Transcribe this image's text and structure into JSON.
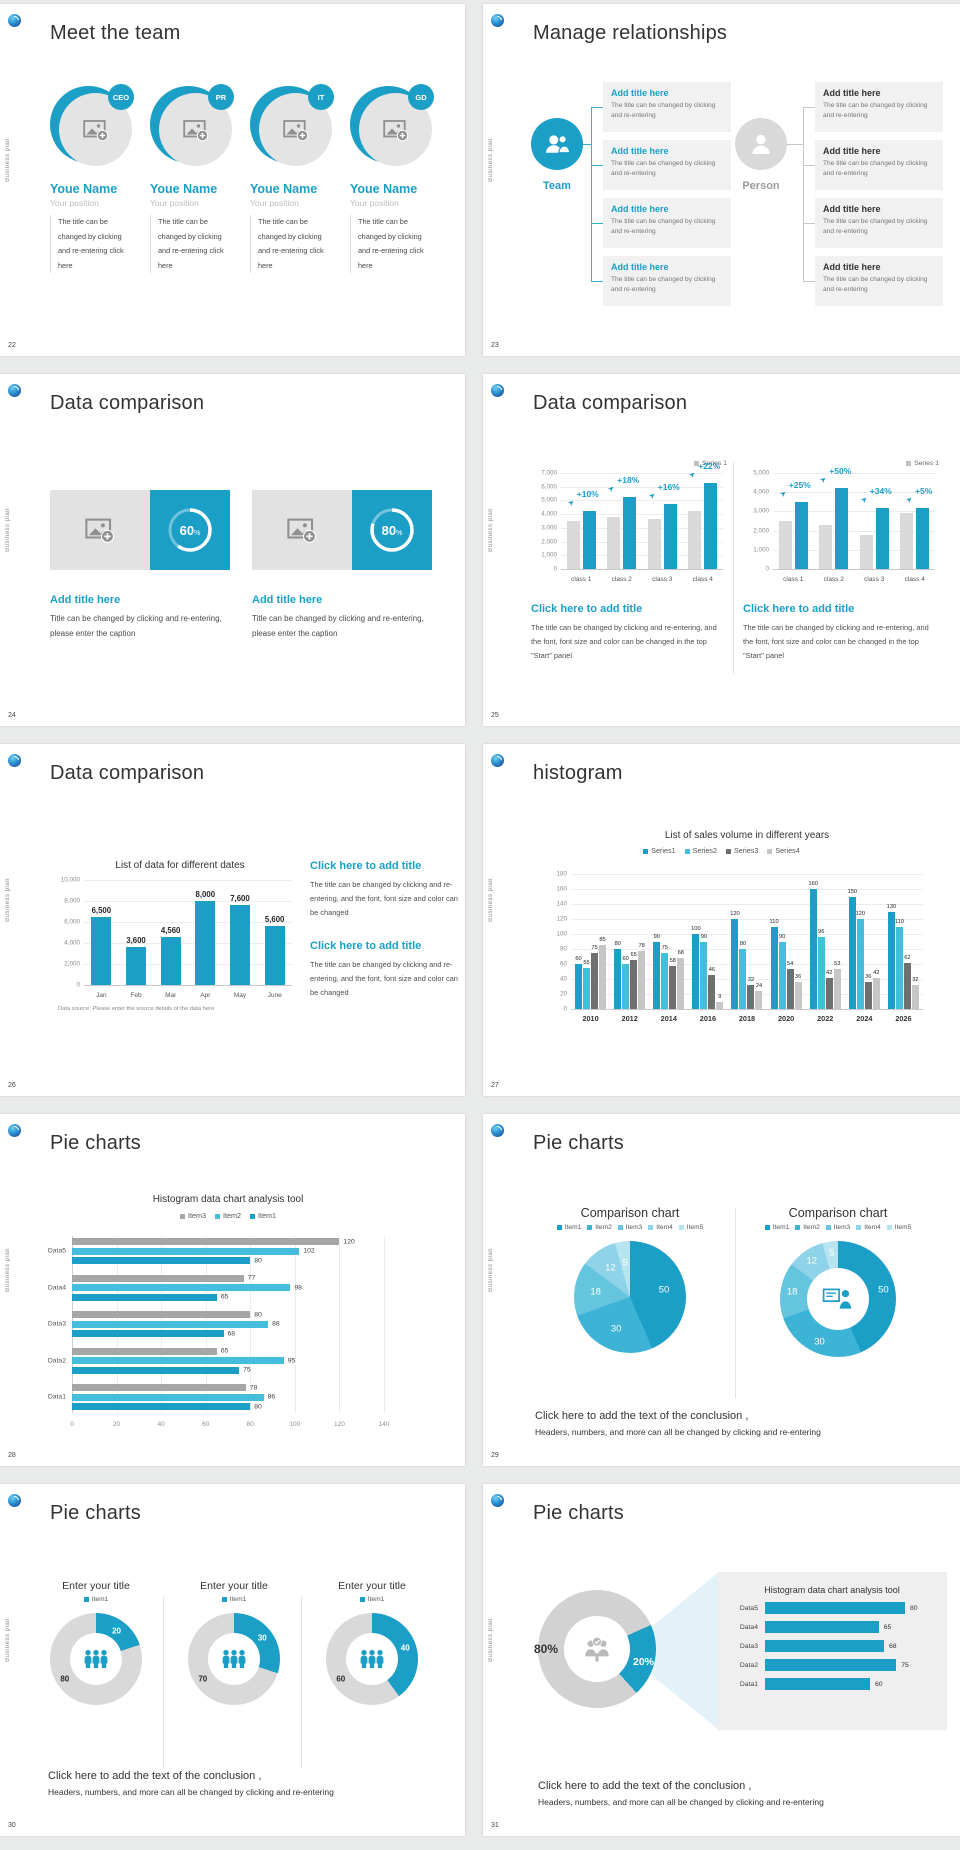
{
  "sidebar_text": "Business plan",
  "accent": "#1b9fc7",
  "s22": {
    "page": "22",
    "title": "Meet the team",
    "badges": [
      "CEO",
      "PR",
      "IT",
      "GD"
    ],
    "name": "Youe Name",
    "position": "Your position",
    "desc": "The title can be changed by clicking and re-entering click here"
  },
  "s23": {
    "page": "23",
    "title": "Manage relationships",
    "team": "Team",
    "person": "Person",
    "box_title": "Add title here",
    "box_body": "The title can be changed by clicking and re-entering"
  },
  "s24": {
    "page": "24",
    "title": "Data comparison",
    "item_title": "Add title here",
    "caption": "Title can be changed by clicking and re-entering, please enter the caption",
    "percents": [
      60,
      80
    ],
    "percent_symbol": "%"
  },
  "s25": {
    "page": "25",
    "title": "Data comparison",
    "legend": "Series 1",
    "legend_color": "#bfbfbf",
    "block_title": "Click here to add title",
    "block_body": "The title can be changed by clicking and re-entering, and the font, font size and color can be changed in the top \"Start\" panel",
    "charts": [
      {
        "type": "bar",
        "ymax": 7000,
        "yticks": [
          "7,000",
          "6,000",
          "5,000",
          "4,000",
          "3,000",
          "2,000",
          "1,000",
          "0"
        ],
        "categories": [
          "class 1",
          "class 2",
          "class 3",
          "class 4"
        ],
        "series": [
          {
            "name": "baseline",
            "color": "#d9d9d9",
            "values": [
              3500,
              3800,
              3650,
              4250
            ]
          },
          {
            "name": "Series 1",
            "color": "#1b9fc7",
            "values": [
              4200,
              5250,
              4750,
              6300
            ]
          }
        ],
        "annotations": [
          "+10%",
          "+18%",
          "+16%",
          "+22%"
        ]
      },
      {
        "type": "bar",
        "ymax": 5000,
        "yticks": [
          "5,000",
          "4,000",
          "3,000",
          "2,000",
          "1,000",
          "0"
        ],
        "categories": [
          "class 1",
          "class 2",
          "class 3",
          "class 4"
        ],
        "series": [
          {
            "name": "baseline",
            "color": "#d9d9d9",
            "values": [
              2500,
              2300,
              1750,
              2900
            ]
          },
          {
            "name": "Series 1",
            "color": "#1b9fc7",
            "values": [
              3500,
              4200,
              3200,
              3200
            ]
          }
        ],
        "annotations": [
          "+25%",
          "+50%",
          "+34%",
          "+5%"
        ]
      }
    ]
  },
  "s26": {
    "page": "26",
    "title": "Data comparison",
    "chart": {
      "type": "bar",
      "title": "List of data for different dates",
      "ymax": 10000,
      "yticks": [
        "10,000",
        "8,000",
        "6,000",
        "4,000",
        "2,000",
        "0"
      ],
      "categories": [
        "Jan",
        "Feb",
        "Mar",
        "Apr",
        "May",
        "June"
      ],
      "values": [
        6500,
        3600,
        4560,
        8000,
        7600,
        5600
      ],
      "labels": [
        "6,500",
        "3,600",
        "4,560",
        "8,000",
        "7,600",
        "5,600"
      ],
      "source": "Data source: Please enter the source details of the data here"
    },
    "block_title": "Click here to add title",
    "block_body": "The title can be changed by clicking and re-entering, and the font, font size and color can be changed"
  },
  "s27": {
    "page": "27",
    "title": "histogram",
    "chart": {
      "type": "bar",
      "title": "List of sales volume in different years",
      "ymax": 180,
      "yticks": [
        "180",
        "160",
        "140",
        "120",
        "100",
        "80",
        "60",
        "40",
        "20",
        "0"
      ],
      "categories": [
        "2010",
        "2012",
        "2014",
        "2016",
        "2018",
        "2020",
        "2022",
        "2024",
        "2026"
      ],
      "series": [
        {
          "name": "Series1",
          "color": "#1b9fc7",
          "values": [
            60,
            80,
            90,
            100,
            120,
            110,
            160,
            150,
            130
          ]
        },
        {
          "name": "Series2",
          "color": "#45bedd",
          "values": [
            55,
            60,
            75,
            90,
            80,
            90,
            96,
            120,
            110
          ]
        },
        {
          "name": "Series3",
          "color": "#6f6f6f",
          "values": [
            75,
            65,
            58,
            46,
            32,
            54,
            42,
            36,
            62
          ]
        },
        {
          "name": "Series4",
          "color": "#c6c6c6",
          "values": [
            85,
            78,
            68,
            9,
            24,
            36,
            53,
            42,
            32
          ]
        }
      ]
    }
  },
  "s28": {
    "page": "28",
    "title": "Pie charts",
    "chart": {
      "type": "bar-horizontal",
      "title": "Histogram data chart analysis tool",
      "xmax": 140,
      "xticks": [
        "0",
        "20",
        "40",
        "60",
        "80",
        "100",
        "120",
        "140"
      ],
      "categories": [
        "Data5",
        "Data4",
        "Data3",
        "Data2",
        "Data1"
      ],
      "series": [
        {
          "name": "Item3",
          "color": "#a6a6a6",
          "values": [
            120,
            77,
            80,
            65,
            78
          ]
        },
        {
          "name": "Item2",
          "color": "#45bedd",
          "values": [
            102,
            98,
            88,
            95,
            86
          ]
        },
        {
          "name": "Item1",
          "color": "#1b9fc7",
          "values": [
            80,
            65,
            68,
            75,
            80
          ]
        }
      ]
    }
  },
  "s29": {
    "page": "29",
    "title": "Pie charts",
    "panel_title": "Comparison chart",
    "legend": [
      "Item1",
      "Item2",
      "Item3",
      "Item4",
      "Item5"
    ],
    "colors": [
      "#1b9fc7",
      "#3db4d6",
      "#65c4de",
      "#8fd3e8",
      "#b7e4f1"
    ],
    "values": [
      50,
      30,
      18,
      12,
      5
    ],
    "conclusion_title": "Click here to add the text of the conclusion",
    "conclusion_comma": ",",
    "conclusion_body": "Headers, numbers, and more can all be changed by clicking and re-entering"
  },
  "s30": {
    "page": "30",
    "title": "Pie charts",
    "panel_title": "Enter your title",
    "legend": "Item1",
    "blue": "#1b9fc7",
    "gray": "#d9d9d9",
    "donuts": [
      {
        "value": 20,
        "rest": 80
      },
      {
        "value": 30,
        "rest": 70
      },
      {
        "value": 40,
        "rest": 60
      }
    ],
    "conclusion_title": "Click here to add the text of the conclusion",
    "conclusion_comma": ",",
    "conclusion_body": "Headers, numbers, and more can all be changed by clicking and re-entering"
  },
  "s31": {
    "page": "31",
    "title": "Pie charts",
    "donut": {
      "blue_value": 20,
      "gray_value": 80,
      "blue_label": "20%",
      "gray_label": "80%",
      "blue": "#1b9fc7",
      "gray": "#d2d2d2",
      "start_deg": 66
    },
    "panel": {
      "title": "Histogram data chart analysis tool",
      "categories": [
        "Data5",
        "Data4",
        "Data3",
        "Data2",
        "Data1"
      ],
      "values": [
        80,
        65,
        68,
        75,
        60
      ]
    },
    "conclusion_title": "Click here to add the text of the conclusion",
    "conclusion_comma": ",",
    "conclusion_body": "Headers, numbers, and more can all be changed by clicking and re-entering"
  }
}
